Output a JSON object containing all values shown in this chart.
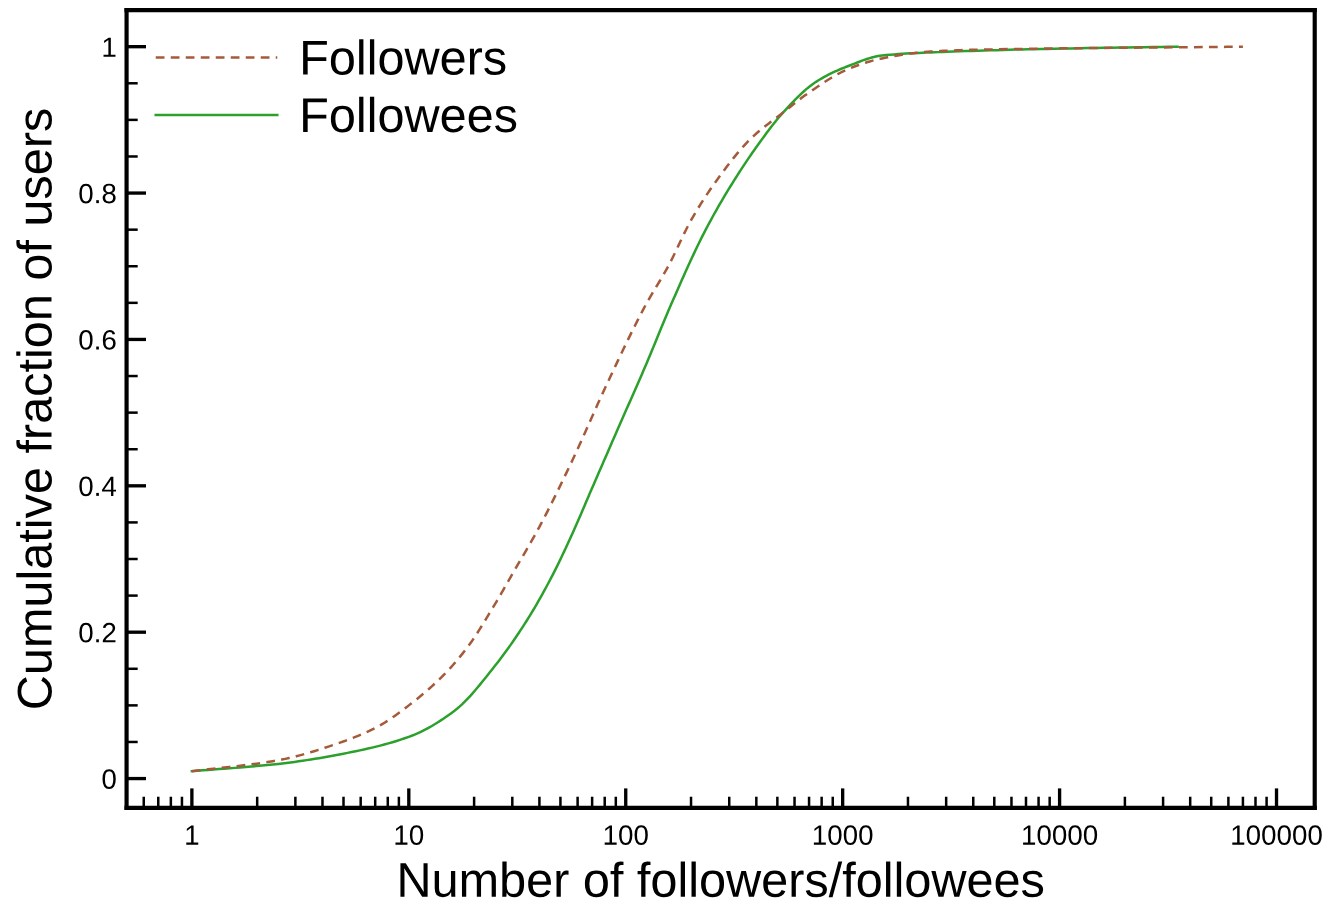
{
  "chart_data": {
    "type": "line",
    "xlabel": "Number of followers/followees",
    "ylabel": "Cumulative fraction of users",
    "log": "x",
    "xlim": [
      0.5,
      150000
    ],
    "ylim": [
      -0.04,
      1.05
    ],
    "xticks": [
      1,
      10,
      100,
      1000,
      10000,
      100000
    ],
    "yticks": [
      0,
      0.2,
      0.4,
      0.6,
      0.8,
      1
    ],
    "grid": false,
    "legend": "top left",
    "series": [
      {
        "name": "Followers",
        "color": "#a65a3c",
        "line_style": "dashed",
        "x": [
          1,
          2.5,
          4.6,
          7.1,
          10,
          14.2,
          18.7,
          24.8,
          30.5,
          40,
          57,
          81,
          123,
          157,
          201,
          265,
          376,
          531,
          705,
          1070,
          1520,
          2460,
          4300,
          70000
        ],
        "values": [
          0.01,
          0.025,
          0.047,
          0.07,
          0.1,
          0.139,
          0.18,
          0.237,
          0.283,
          0.344,
          0.436,
          0.536,
          0.646,
          0.7,
          0.764,
          0.819,
          0.874,
          0.91,
          0.938,
          0.97,
          0.984,
          0.993,
          0.996,
          1.0
        ]
      },
      {
        "name": "Followees",
        "color": "#2ca02c",
        "line_style": "solid",
        "x": [
          1,
          2.5,
          5,
          10,
          16.3,
          24.8,
          35,
          46,
          57,
          70,
          93,
          123,
          162,
          230,
          305,
          405,
          531,
          754,
          1070,
          1520,
          3020,
          8700,
          35000
        ],
        "values": [
          0.01,
          0.02,
          0.034,
          0.057,
          0.093,
          0.153,
          0.216,
          0.278,
          0.336,
          0.397,
          0.481,
          0.563,
          0.648,
          0.746,
          0.81,
          0.865,
          0.91,
          0.952,
          0.974,
          0.988,
          0.993,
          0.997,
          1.0
        ]
      }
    ]
  }
}
